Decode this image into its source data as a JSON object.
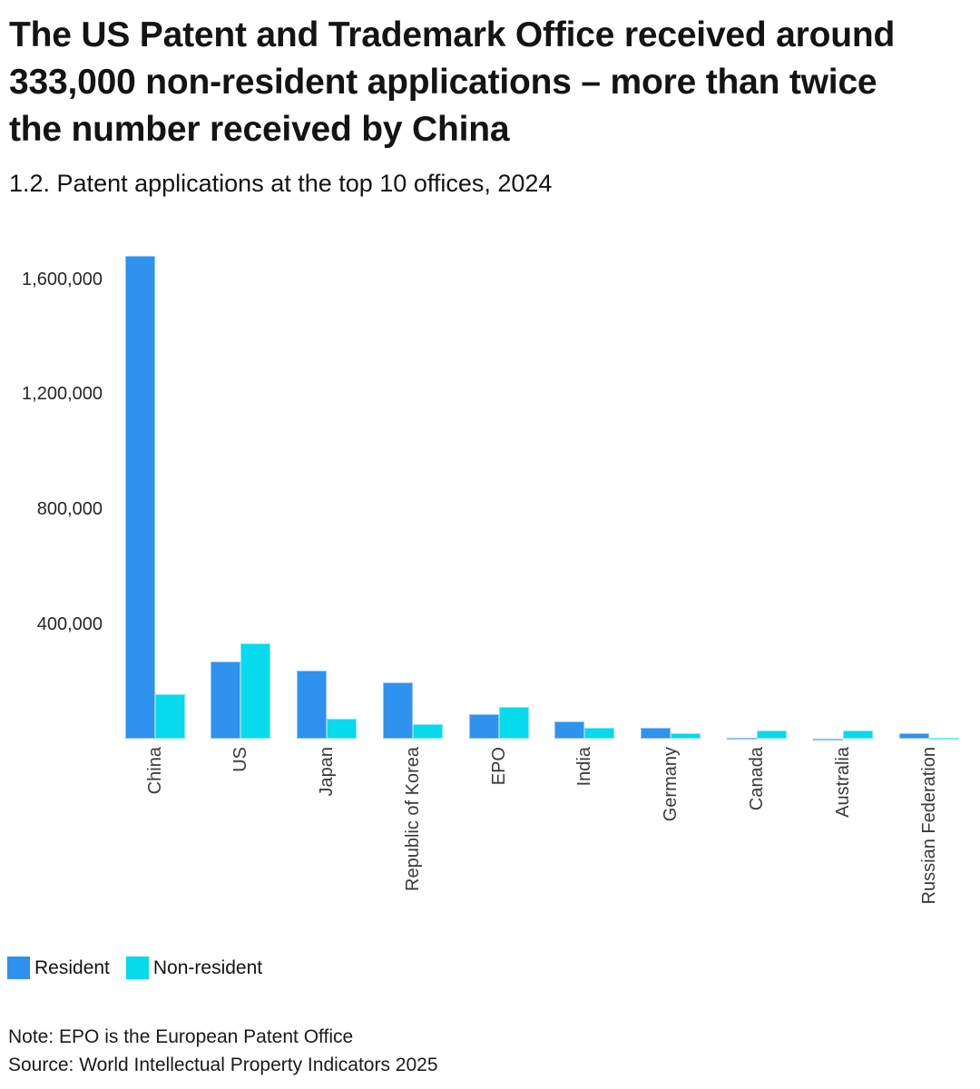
{
  "header": {
    "title_lines": [
      "The US Patent and Trademark Office received around",
      "333,000 non-resident applications – more than twice",
      "the number received by China"
    ],
    "subtitle": "1.2. Patent applications at the top 10 offices, 2024"
  },
  "chart_data": {
    "type": "bar",
    "title": "The US Patent and Trademark Office received around 333,000 non-resident applications – more than twice the number received by China",
    "subtitle": "1.2. Patent applications at the top 10 offices, 2024",
    "categories": [
      "China",
      "US",
      "Japan",
      "Republic of Korea",
      "EPO",
      "India",
      "Germany",
      "Canada",
      "Australia",
      "Russian Federation"
    ],
    "series": [
      {
        "name": "Resident",
        "color": "#2E92EE",
        "values": [
          1680000,
          270000,
          237000,
          196000,
          86000,
          63000,
          40000,
          6000,
          3000,
          20000
        ]
      },
      {
        "name": "Non-resident",
        "color": "#06DAEC",
        "values": [
          155000,
          333000,
          70000,
          51000,
          113000,
          38000,
          20000,
          31000,
          29000,
          5000
        ]
      }
    ],
    "xlabel": "",
    "ylabel": "",
    "ylim": [
      0,
      1700000
    ],
    "yticks": [
      400000,
      800000,
      1200000,
      1600000
    ],
    "ytick_labels": [
      "400,000",
      "800,000",
      "1,200,000",
      "1,600,000"
    ],
    "grid": false,
    "legend_position": "bottom-left",
    "xtick_rotation": 90
  },
  "legend": {
    "items": [
      {
        "label": "Resident",
        "color": "#2E92EE"
      },
      {
        "label": "Non-resident",
        "color": "#06DAEC"
      }
    ]
  },
  "footer": {
    "note": "Note: EPO is the European Patent Office",
    "source": "Source: World Intellectual Property Indicators 2025"
  }
}
